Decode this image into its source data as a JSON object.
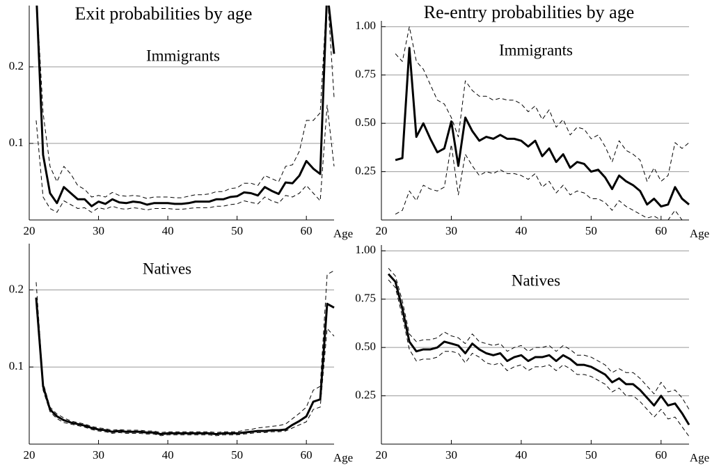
{
  "chart_data": [
    {
      "type": "line",
      "title": "Exit probabilities by age",
      "label": "Immigrants",
      "xlabel": "Age",
      "x": [
        21,
        22,
        23,
        24,
        25,
        26,
        27,
        28,
        29,
        30,
        31,
        32,
        33,
        34,
        35,
        36,
        37,
        38,
        39,
        40,
        41,
        42,
        43,
        44,
        45,
        46,
        47,
        48,
        49,
        50,
        51,
        52,
        53,
        54,
        55,
        56,
        57,
        58,
        59,
        60,
        61,
        62,
        63,
        64
      ],
      "xlim": [
        20,
        64
      ],
      "xticks": [
        20,
        30,
        40,
        50,
        60
      ],
      "ylim": [
        0,
        0.28
      ],
      "yticks": [
        0.1,
        0.2
      ],
      "grid": true,
      "series": [
        {
          "color": "#000000",
          "style": "solid",
          "values": [
            0.3,
            0.085,
            0.035,
            0.022,
            0.043,
            0.035,
            0.027,
            0.027,
            0.018,
            0.024,
            0.021,
            0.027,
            0.023,
            0.022,
            0.024,
            0.023,
            0.02,
            0.022,
            0.022,
            0.022,
            0.021,
            0.021,
            0.022,
            0.024,
            0.024,
            0.024,
            0.027,
            0.027,
            0.03,
            0.031,
            0.036,
            0.035,
            0.032,
            0.043,
            0.038,
            0.034,
            0.049,
            0.048,
            0.058,
            0.077,
            0.067,
            0.06,
            0.3,
            0.217
          ]
        },
        {
          "color": "#000000",
          "style": "dashed",
          "values": [
            0.3,
            0.14,
            0.07,
            0.05,
            0.07,
            0.06,
            0.045,
            0.04,
            0.03,
            0.032,
            0.03,
            0.036,
            0.032,
            0.031,
            0.032,
            0.031,
            0.028,
            0.03,
            0.03,
            0.03,
            0.029,
            0.029,
            0.031,
            0.033,
            0.033,
            0.034,
            0.037,
            0.037,
            0.041,
            0.042,
            0.048,
            0.048,
            0.045,
            0.058,
            0.054,
            0.05,
            0.07,
            0.072,
            0.09,
            0.13,
            0.13,
            0.14,
            0.3,
            0.16
          ]
        },
        {
          "color": "#000000",
          "style": "dashed",
          "values": [
            0.13,
            0.03,
            0.015,
            0.01,
            0.025,
            0.02,
            0.015,
            0.016,
            0.01,
            0.016,
            0.014,
            0.018,
            0.015,
            0.014,
            0.016,
            0.015,
            0.013,
            0.015,
            0.015,
            0.015,
            0.014,
            0.014,
            0.015,
            0.016,
            0.016,
            0.016,
            0.018,
            0.018,
            0.02,
            0.021,
            0.025,
            0.023,
            0.021,
            0.03,
            0.025,
            0.022,
            0.032,
            0.03,
            0.035,
            0.045,
            0.035,
            0.025,
            0.15,
            0.07
          ]
        }
      ]
    },
    {
      "type": "line",
      "title": "Re-entry probabilities by age",
      "label": "Immigrants",
      "xlabel": "Age",
      "x": [
        22,
        23,
        24,
        25,
        26,
        27,
        28,
        29,
        30,
        31,
        32,
        33,
        34,
        35,
        36,
        37,
        38,
        39,
        40,
        41,
        42,
        43,
        44,
        45,
        46,
        47,
        48,
        49,
        50,
        51,
        52,
        53,
        54,
        55,
        56,
        57,
        58,
        59,
        60,
        61,
        62,
        63,
        64
      ],
      "xlim": [
        20,
        64
      ],
      "xticks": [
        20,
        30,
        40,
        50,
        60
      ],
      "ylim": [
        0,
        1.03
      ],
      "yticks": [
        {
          "value": 0.25,
          "label": "0.25"
        },
        {
          "value": 0.5,
          "label": "0.50"
        },
        {
          "value": 0.75,
          "label": "0.75"
        },
        {
          "value": 1,
          "label": "1.00"
        }
      ],
      "grid": true,
      "series": [
        {
          "color": "#000000",
          "style": "solid",
          "values": [
            0.31,
            0.32,
            0.89,
            0.43,
            0.5,
            0.42,
            0.35,
            0.37,
            0.51,
            0.28,
            0.53,
            0.46,
            0.41,
            0.43,
            0.42,
            0.44,
            0.42,
            0.42,
            0.41,
            0.38,
            0.41,
            0.33,
            0.37,
            0.3,
            0.34,
            0.27,
            0.3,
            0.29,
            0.25,
            0.26,
            0.22,
            0.16,
            0.23,
            0.2,
            0.18,
            0.15,
            0.08,
            0.11,
            0.07,
            0.08,
            0.17,
            0.11,
            0.08
          ]
        },
        {
          "color": "#000000",
          "style": "dashed",
          "values": [
            0.86,
            0.82,
            1.0,
            0.82,
            0.78,
            0.7,
            0.62,
            0.6,
            0.53,
            0.43,
            0.72,
            0.67,
            0.64,
            0.64,
            0.62,
            0.63,
            0.62,
            0.62,
            0.6,
            0.56,
            0.59,
            0.52,
            0.57,
            0.48,
            0.52,
            0.44,
            0.48,
            0.47,
            0.42,
            0.44,
            0.38,
            0.3,
            0.41,
            0.36,
            0.34,
            0.31,
            0.2,
            0.27,
            0.2,
            0.23,
            0.4,
            0.37,
            0.4
          ]
        },
        {
          "color": "#000000",
          "style": "dashed",
          "values": [
            0.03,
            0.05,
            0.15,
            0.1,
            0.18,
            0.16,
            0.15,
            0.17,
            0.39,
            0.13,
            0.34,
            0.28,
            0.23,
            0.25,
            0.24,
            0.26,
            0.24,
            0.24,
            0.23,
            0.21,
            0.24,
            0.17,
            0.2,
            0.14,
            0.18,
            0.13,
            0.15,
            0.14,
            0.11,
            0.11,
            0.09,
            0.05,
            0.1,
            0.07,
            0.05,
            0.03,
            0.01,
            0.02,
            0.0,
            0.0,
            0.05,
            0.0,
            0.0
          ]
        }
      ]
    },
    {
      "type": "line",
      "label": "Natives",
      "xlabel": "Age",
      "x": [
        21,
        22,
        23,
        24,
        25,
        26,
        27,
        28,
        29,
        30,
        31,
        32,
        33,
        34,
        35,
        36,
        37,
        38,
        39,
        40,
        41,
        42,
        43,
        44,
        45,
        46,
        47,
        48,
        49,
        50,
        51,
        52,
        53,
        54,
        55,
        56,
        57,
        58,
        59,
        60,
        61,
        62,
        63,
        64
      ],
      "xlim": [
        20,
        64
      ],
      "xticks": [
        20,
        30,
        40,
        50,
        60
      ],
      "ylim": [
        0,
        0.26
      ],
      "yticks": [
        0.1,
        0.2
      ],
      "grid": true,
      "series": [
        {
          "color": "#000000",
          "style": "solid",
          "values": [
            0.19,
            0.075,
            0.045,
            0.036,
            0.031,
            0.028,
            0.026,
            0.024,
            0.021,
            0.019,
            0.018,
            0.016,
            0.017,
            0.016,
            0.016,
            0.016,
            0.015,
            0.015,
            0.013,
            0.014,
            0.014,
            0.014,
            0.014,
            0.014,
            0.014,
            0.014,
            0.013,
            0.014,
            0.014,
            0.014,
            0.015,
            0.016,
            0.017,
            0.017,
            0.018,
            0.018,
            0.019,
            0.025,
            0.03,
            0.036,
            0.055,
            0.058,
            0.182,
            0.177
          ]
        },
        {
          "color": "#000000",
          "style": "dashed",
          "values": [
            0.21,
            0.08,
            0.048,
            0.039,
            0.034,
            0.03,
            0.028,
            0.026,
            0.023,
            0.021,
            0.02,
            0.018,
            0.019,
            0.018,
            0.018,
            0.018,
            0.017,
            0.017,
            0.015,
            0.016,
            0.016,
            0.016,
            0.016,
            0.016,
            0.016,
            0.016,
            0.015,
            0.016,
            0.016,
            0.016,
            0.018,
            0.019,
            0.021,
            0.022,
            0.023,
            0.024,
            0.026,
            0.033,
            0.04,
            0.048,
            0.07,
            0.075,
            0.22,
            0.225
          ]
        },
        {
          "color": "#000000",
          "style": "dashed",
          "values": [
            0.18,
            0.07,
            0.042,
            0.033,
            0.028,
            0.026,
            0.024,
            0.022,
            0.019,
            0.017,
            0.016,
            0.014,
            0.015,
            0.014,
            0.014,
            0.014,
            0.013,
            0.013,
            0.011,
            0.012,
            0.012,
            0.012,
            0.012,
            0.012,
            0.012,
            0.012,
            0.011,
            0.012,
            0.012,
            0.012,
            0.013,
            0.014,
            0.015,
            0.015,
            0.016,
            0.016,
            0.017,
            0.021,
            0.025,
            0.029,
            0.045,
            0.048,
            0.15,
            0.14
          ]
        }
      ]
    },
    {
      "type": "line",
      "label": "Natives",
      "xlabel": "Age",
      "x": [
        21,
        22,
        23,
        24,
        25,
        26,
        27,
        28,
        29,
        30,
        31,
        32,
        33,
        34,
        35,
        36,
        37,
        38,
        39,
        40,
        41,
        42,
        43,
        44,
        45,
        46,
        47,
        48,
        49,
        50,
        51,
        52,
        53,
        54,
        55,
        56,
        57,
        58,
        59,
        60,
        61,
        62,
        63,
        64
      ],
      "xlim": [
        20,
        64
      ],
      "xticks": [
        20,
        30,
        40,
        50,
        60
      ],
      "ylim": [
        0,
        1.03
      ],
      "yticks": [
        {
          "value": 0.25,
          "label": "0.25"
        },
        {
          "value": 0.5,
          "label": "0.50"
        },
        {
          "value": 0.75,
          "label": "0.75"
        },
        {
          "value": 1,
          "label": "1.00"
        }
      ],
      "grid": true,
      "series": [
        {
          "color": "#000000",
          "style": "solid",
          "values": [
            0.88,
            0.84,
            0.7,
            0.53,
            0.48,
            0.49,
            0.49,
            0.5,
            0.53,
            0.52,
            0.51,
            0.47,
            0.52,
            0.49,
            0.47,
            0.46,
            0.47,
            0.43,
            0.45,
            0.46,
            0.43,
            0.45,
            0.45,
            0.46,
            0.43,
            0.46,
            0.44,
            0.41,
            0.41,
            0.4,
            0.38,
            0.36,
            0.32,
            0.34,
            0.31,
            0.31,
            0.28,
            0.24,
            0.2,
            0.25,
            0.2,
            0.21,
            0.16,
            0.1
          ]
        },
        {
          "color": "#000000",
          "style": "dashed",
          "values": [
            0.91,
            0.87,
            0.74,
            0.57,
            0.53,
            0.54,
            0.54,
            0.55,
            0.58,
            0.56,
            0.55,
            0.52,
            0.57,
            0.53,
            0.52,
            0.51,
            0.52,
            0.48,
            0.5,
            0.51,
            0.48,
            0.5,
            0.5,
            0.51,
            0.48,
            0.51,
            0.49,
            0.46,
            0.46,
            0.45,
            0.43,
            0.41,
            0.37,
            0.39,
            0.37,
            0.37,
            0.34,
            0.3,
            0.26,
            0.32,
            0.27,
            0.28,
            0.24,
            0.18
          ]
        },
        {
          "color": "#000000",
          "style": "dashed",
          "values": [
            0.85,
            0.81,
            0.66,
            0.49,
            0.43,
            0.44,
            0.44,
            0.45,
            0.48,
            0.48,
            0.47,
            0.42,
            0.47,
            0.45,
            0.42,
            0.41,
            0.42,
            0.38,
            0.4,
            0.41,
            0.38,
            0.4,
            0.4,
            0.41,
            0.38,
            0.41,
            0.39,
            0.36,
            0.36,
            0.35,
            0.33,
            0.31,
            0.27,
            0.29,
            0.25,
            0.25,
            0.22,
            0.18,
            0.14,
            0.18,
            0.13,
            0.14,
            0.09,
            0.04
          ]
        }
      ]
    }
  ]
}
